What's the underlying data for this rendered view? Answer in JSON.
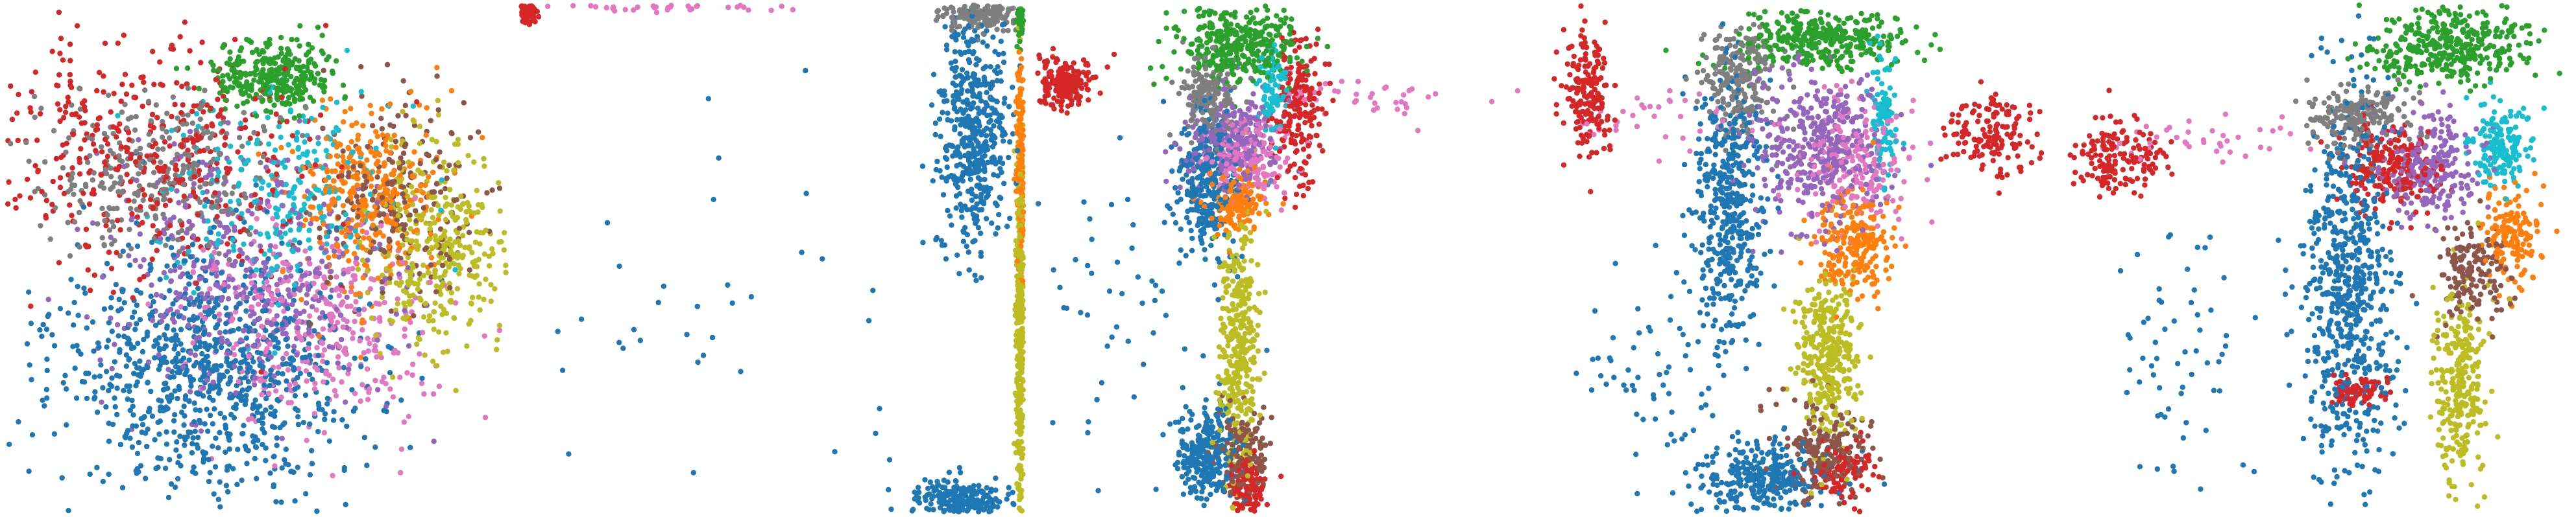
{
  "figure": {
    "panel_count": 5,
    "panels_have_axes": false,
    "background": "#ffffff"
  },
  "palette": {
    "blue": "#1f77b4",
    "orange": "#ff7f0e",
    "green": "#2ca02c",
    "red": "#d62728",
    "purple": "#9467bd",
    "brown": "#8c564b",
    "pink": "#e377c2",
    "gray": "#7f7f7f",
    "olive": "#bcbd22",
    "cyan": "#17becf"
  },
  "chart_data": [
    {
      "type": "scatter",
      "panel": 1,
      "title": "",
      "xlabel": "",
      "ylabel": "",
      "xlim": [
        0,
        1
      ],
      "ylim": [
        0,
        1
      ],
      "grid": false,
      "legend": "none",
      "clusters": [
        {
          "color": "blue",
          "cx": 0.4,
          "cy": 0.28,
          "sx": 0.15,
          "sy": 0.12,
          "n": 900
        },
        {
          "color": "purple",
          "cx": 0.48,
          "cy": 0.47,
          "sx": 0.14,
          "sy": 0.12,
          "n": 450
        },
        {
          "color": "pink",
          "cx": 0.62,
          "cy": 0.36,
          "sx": 0.12,
          "sy": 0.1,
          "n": 350
        },
        {
          "color": "red",
          "cx": 0.28,
          "cy": 0.7,
          "sx": 0.18,
          "sy": 0.12,
          "n": 450
        },
        {
          "color": "gray",
          "cx": 0.3,
          "cy": 0.66,
          "sx": 0.12,
          "sy": 0.08,
          "n": 320
        },
        {
          "color": "cyan",
          "cx": 0.55,
          "cy": 0.63,
          "sx": 0.12,
          "sy": 0.1,
          "n": 250
        },
        {
          "color": "orange",
          "cx": 0.72,
          "cy": 0.62,
          "sx": 0.07,
          "sy": 0.09,
          "n": 350
        },
        {
          "color": "olive",
          "cx": 0.86,
          "cy": 0.53,
          "sx": 0.07,
          "sy": 0.11,
          "n": 350
        },
        {
          "color": "brown",
          "cx": 0.78,
          "cy": 0.62,
          "sx": 0.08,
          "sy": 0.09,
          "n": 220
        },
        {
          "color": "green",
          "cx": 0.53,
          "cy": 0.86,
          "sx": 0.06,
          "sy": 0.035,
          "n": 320
        }
      ]
    },
    {
      "type": "scatter",
      "panel": 2,
      "title": "",
      "xlabel": "",
      "ylabel": "",
      "xlim": [
        0,
        1
      ],
      "ylim": [
        0,
        1
      ],
      "grid": false,
      "legend": "none",
      "clusters": [
        {
          "color": "blue",
          "cx": 0.9,
          "cy": 0.75,
          "sx": 0.035,
          "sy": 0.12,
          "n": 500
        },
        {
          "color": "blue",
          "cx": 0.87,
          "cy": 0.02,
          "sx": 0.05,
          "sy": 0.02,
          "n": 250
        },
        {
          "color": "olive",
          "cx": 0.995,
          "cy": 0.35,
          "sx": 0.005,
          "sy": 0.22,
          "n": 400
        },
        {
          "color": "orange",
          "cx": 0.995,
          "cy": 0.7,
          "sx": 0.005,
          "sy": 0.12,
          "n": 200
        },
        {
          "color": "gray",
          "cx": 0.92,
          "cy": 0.98,
          "sx": 0.04,
          "sy": 0.015,
          "n": 200
        },
        {
          "color": "red",
          "cx": 0.01,
          "cy": 0.985,
          "sx": 0.01,
          "sy": 0.01,
          "n": 80
        },
        {
          "color": "pink",
          "cx": 0.25,
          "cy": 0.995,
          "sx": 0.12,
          "sy": 0.004,
          "n": 40
        },
        {
          "color": "green",
          "cx": 0.995,
          "cy": 0.97,
          "sx": 0.004,
          "sy": 0.02,
          "n": 60
        },
        {
          "color": "blue",
          "cx": 0.4,
          "cy": 0.35,
          "sx": 0.25,
          "sy": 0.25,
          "n": 40
        }
      ]
    },
    {
      "type": "scatter",
      "panel": 3,
      "title": "",
      "xlabel": "",
      "ylabel": "",
      "xlim": [
        0,
        1
      ],
      "ylim": [
        0,
        1
      ],
      "grid": false,
      "legend": "none",
      "clusters": [
        {
          "color": "green",
          "cx": 0.4,
          "cy": 0.92,
          "sx": 0.06,
          "sy": 0.035,
          "n": 350
        },
        {
          "color": "gray",
          "cx": 0.34,
          "cy": 0.82,
          "sx": 0.025,
          "sy": 0.04,
          "n": 180
        },
        {
          "color": "purple",
          "cx": 0.39,
          "cy": 0.73,
          "sx": 0.045,
          "sy": 0.05,
          "n": 280
        },
        {
          "color": "pink",
          "cx": 0.42,
          "cy": 0.7,
          "sx": 0.04,
          "sy": 0.04,
          "n": 160
        },
        {
          "color": "blue",
          "cx": 0.34,
          "cy": 0.65,
          "sx": 0.03,
          "sy": 0.07,
          "n": 300
        },
        {
          "color": "orange",
          "cx": 0.4,
          "cy": 0.61,
          "sx": 0.025,
          "sy": 0.03,
          "n": 150
        },
        {
          "color": "olive",
          "cx": 0.4,
          "cy": 0.33,
          "sx": 0.02,
          "sy": 0.13,
          "n": 350
        },
        {
          "color": "blue",
          "cx": 0.34,
          "cy": 0.11,
          "sx": 0.03,
          "sy": 0.04,
          "n": 260
        },
        {
          "color": "brown",
          "cx": 0.41,
          "cy": 0.12,
          "sx": 0.025,
          "sy": 0.05,
          "n": 150
        },
        {
          "color": "red",
          "cx": 0.42,
          "cy": 0.05,
          "sx": 0.02,
          "sy": 0.03,
          "n": 120
        },
        {
          "color": "red",
          "cx": 0.05,
          "cy": 0.85,
          "sx": 0.035,
          "sy": 0.025,
          "n": 220
        },
        {
          "color": "red",
          "cx": 0.52,
          "cy": 0.8,
          "sx": 0.025,
          "sy": 0.08,
          "n": 200
        },
        {
          "color": "cyan",
          "cx": 0.47,
          "cy": 0.83,
          "sx": 0.015,
          "sy": 0.05,
          "n": 90
        },
        {
          "color": "pink",
          "cx": 0.65,
          "cy": 0.82,
          "sx": 0.1,
          "sy": 0.02,
          "n": 40
        },
        {
          "color": "blue",
          "cx": 0.2,
          "cy": 0.4,
          "sx": 0.12,
          "sy": 0.15,
          "n": 60
        }
      ]
    },
    {
      "type": "scatter",
      "panel": 4,
      "title": "",
      "xlabel": "",
      "ylabel": "",
      "xlim": [
        0,
        1
      ],
      "ylim": [
        0,
        1
      ],
      "grid": false,
      "legend": "none",
      "clusters": [
        {
          "color": "green",
          "cx": 0.53,
          "cy": 0.93,
          "sx": 0.08,
          "sy": 0.03,
          "n": 350
        },
        {
          "color": "gray",
          "cx": 0.37,
          "cy": 0.85,
          "sx": 0.04,
          "sy": 0.05,
          "n": 220
        },
        {
          "color": "purple",
          "cx": 0.53,
          "cy": 0.72,
          "sx": 0.07,
          "sy": 0.08,
          "n": 400
        },
        {
          "color": "pink",
          "cx": 0.6,
          "cy": 0.7,
          "sx": 0.06,
          "sy": 0.06,
          "n": 200
        },
        {
          "color": "blue",
          "cx": 0.35,
          "cy": 0.6,
          "sx": 0.035,
          "sy": 0.13,
          "n": 450
        },
        {
          "color": "orange",
          "cx": 0.6,
          "cy": 0.53,
          "sx": 0.035,
          "sy": 0.05,
          "n": 230
        },
        {
          "color": "olive",
          "cx": 0.55,
          "cy": 0.3,
          "sx": 0.03,
          "sy": 0.08,
          "n": 330
        },
        {
          "color": "brown",
          "cx": 0.54,
          "cy": 0.12,
          "sx": 0.045,
          "sy": 0.05,
          "n": 220
        },
        {
          "color": "blue",
          "cx": 0.42,
          "cy": 0.06,
          "sx": 0.06,
          "sy": 0.04,
          "n": 300
        },
        {
          "color": "red",
          "cx": 0.58,
          "cy": 0.08,
          "sx": 0.03,
          "sy": 0.03,
          "n": 100
        },
        {
          "color": "cyan",
          "cx": 0.66,
          "cy": 0.78,
          "sx": 0.015,
          "sy": 0.06,
          "n": 100
        },
        {
          "color": "red",
          "cx": 0.88,
          "cy": 0.74,
          "sx": 0.05,
          "sy": 0.04,
          "n": 150
        },
        {
          "color": "red",
          "cx": 0.07,
          "cy": 0.82,
          "sx": 0.025,
          "sy": 0.06,
          "n": 180
        },
        {
          "color": "pink",
          "cx": 0.2,
          "cy": 0.78,
          "sx": 0.08,
          "sy": 0.03,
          "n": 40
        },
        {
          "color": "blue",
          "cx": 0.22,
          "cy": 0.3,
          "sx": 0.08,
          "sy": 0.12,
          "n": 60
        }
      ]
    },
    {
      "type": "scatter",
      "panel": 5,
      "title": "",
      "xlabel": "",
      "ylabel": "",
      "xlim": [
        0,
        1
      ],
      "ylim": [
        0,
        1
      ],
      "grid": false,
      "legend": "none",
      "clusters": [
        {
          "color": "green",
          "cx": 0.76,
          "cy": 0.92,
          "sx": 0.08,
          "sy": 0.035,
          "n": 380
        },
        {
          "color": "gray",
          "cx": 0.58,
          "cy": 0.78,
          "sx": 0.05,
          "sy": 0.03,
          "n": 220
        },
        {
          "color": "red",
          "cx": 0.64,
          "cy": 0.68,
          "sx": 0.05,
          "sy": 0.04,
          "n": 220
        },
        {
          "color": "purple",
          "cx": 0.72,
          "cy": 0.68,
          "sx": 0.05,
          "sy": 0.05,
          "n": 250
        },
        {
          "color": "cyan",
          "cx": 0.86,
          "cy": 0.72,
          "sx": 0.03,
          "sy": 0.04,
          "n": 150
        },
        {
          "color": "blue",
          "cx": 0.56,
          "cy": 0.45,
          "sx": 0.045,
          "sy": 0.18,
          "n": 650
        },
        {
          "color": "orange",
          "cx": 0.88,
          "cy": 0.55,
          "sx": 0.03,
          "sy": 0.05,
          "n": 160
        },
        {
          "color": "brown",
          "cx": 0.8,
          "cy": 0.48,
          "sx": 0.04,
          "sy": 0.05,
          "n": 160
        },
        {
          "color": "olive",
          "cx": 0.78,
          "cy": 0.25,
          "sx": 0.025,
          "sy": 0.09,
          "n": 280
        },
        {
          "color": "red",
          "cx": 0.1,
          "cy": 0.7,
          "sx": 0.05,
          "sy": 0.04,
          "n": 160
        },
        {
          "color": "pink",
          "cx": 0.25,
          "cy": 0.74,
          "sx": 0.1,
          "sy": 0.02,
          "n": 40
        },
        {
          "color": "red",
          "cx": 0.58,
          "cy": 0.24,
          "sx": 0.03,
          "sy": 0.015,
          "n": 80
        },
        {
          "color": "blue",
          "cx": 0.22,
          "cy": 0.3,
          "sx": 0.08,
          "sy": 0.12,
          "n": 60
        }
      ]
    }
  ]
}
